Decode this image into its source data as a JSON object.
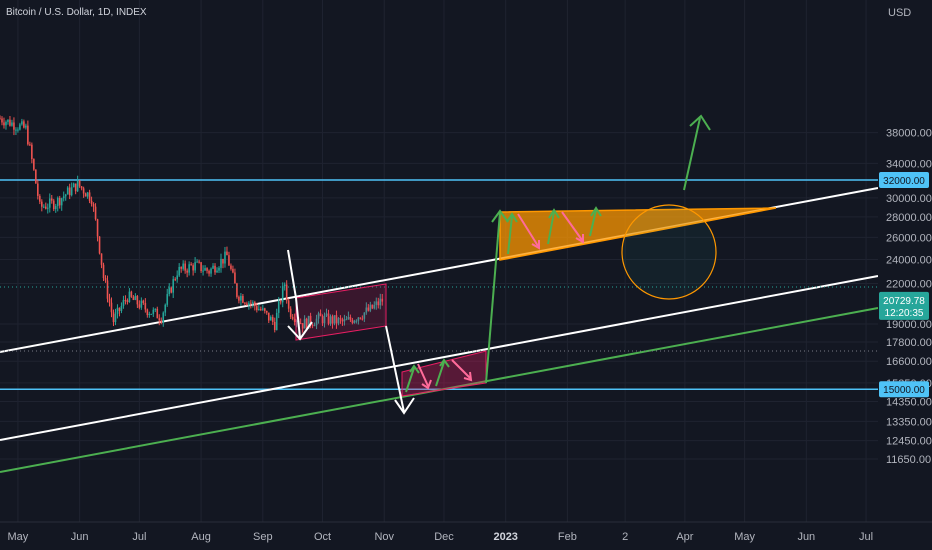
{
  "header": {
    "title": "Bitcoin / U.S. Dollar, 1D, INDEX"
  },
  "chart_data": {
    "type": "candlestick",
    "currency_label": "USD",
    "y_ticks": [
      11650,
      12450,
      13350,
      14350,
      15350,
      16600,
      17800,
      19000,
      22000,
      24000,
      26000,
      28000,
      30000,
      34000,
      38000
    ],
    "y_tick_labels": [
      "11650.00",
      "12450.00",
      "13350.00",
      "14350.00",
      "15350.00",
      "16600.00",
      "17800.00",
      "19000.00",
      "22000.00",
      "24000.00",
      "26000.00",
      "28000.00",
      "30000.00",
      "34000.00",
      "38000.00"
    ],
    "x_ticks": [
      {
        "label": "May",
        "date": "2022-05-01",
        "bold": false
      },
      {
        "label": "Jun",
        "date": "2022-06-01",
        "bold": false
      },
      {
        "label": "Jul",
        "date": "2022-07-01",
        "bold": false
      },
      {
        "label": "Aug",
        "date": "2022-08-01",
        "bold": false
      },
      {
        "label": "Sep",
        "date": "2022-09-01",
        "bold": false
      },
      {
        "label": "Oct",
        "date": "2022-10-01",
        "bold": false
      },
      {
        "label": "Nov",
        "date": "2022-11-01",
        "bold": false
      },
      {
        "label": "Dec",
        "date": "2022-12-01",
        "bold": false
      },
      {
        "label": "2023",
        "date": "2023-01-01",
        "bold": true
      },
      {
        "label": "Feb",
        "date": "2023-02-01",
        "bold": false
      },
      {
        "label": "2",
        "date": "2023-03-02",
        "bold": false
      },
      {
        "label": "Apr",
        "date": "2023-04-01",
        "bold": false
      },
      {
        "label": "May",
        "date": "2023-05-01",
        "bold": false
      },
      {
        "label": "Jun",
        "date": "2023-06-01",
        "bold": false
      },
      {
        "label": "Jul",
        "date": "2023-07-01",
        "bold": false
      }
    ],
    "x_range": [
      "2022-04-22",
      "2023-07-07"
    ],
    "price_keyframes": [
      [
        "2022-04-22",
        40000
      ],
      [
        "2022-04-29",
        39200
      ],
      [
        "2022-05-05",
        38500
      ],
      [
        "2022-05-09",
        33000
      ],
      [
        "2022-05-12",
        29000
      ],
      [
        "2022-05-20",
        29500
      ],
      [
        "2022-05-31",
        31500
      ],
      [
        "2022-06-07",
        30000
      ],
      [
        "2022-06-13",
        22500
      ],
      [
        "2022-06-18",
        19200
      ],
      [
        "2022-06-25",
        21000
      ],
      [
        "2022-07-05",
        20000
      ],
      [
        "2022-07-12",
        19500
      ],
      [
        "2022-07-20",
        23000
      ],
      [
        "2022-07-29",
        23500
      ],
      [
        "2022-08-05",
        23000
      ],
      [
        "2022-08-14",
        24300
      ],
      [
        "2022-08-19",
        21200
      ],
      [
        "2022-08-31",
        20000
      ],
      [
        "2022-09-07",
        19000
      ],
      [
        "2022-09-12",
        22000
      ],
      [
        "2022-09-14",
        20000
      ],
      [
        "2022-09-21",
        19000
      ],
      [
        "2022-09-30",
        19400
      ],
      [
        "2022-10-12",
        19100
      ],
      [
        "2022-10-25",
        20000
      ],
      [
        "2022-10-31",
        20700
      ]
    ],
    "horizontal_levels": [
      {
        "price": 32000,
        "label": "32000.00",
        "color": "#4fc3f7"
      },
      {
        "price": 15000,
        "label": "15000.00",
        "color": "#4fc3f7"
      }
    ],
    "last_price": {
      "value": "20729.78",
      "countdown": "12:20:35",
      "color": "#26a69a"
    },
    "colors": {
      "up": "#26a69a",
      "down": "#ef5350",
      "trendline_white": "#ffffff",
      "trendline_green": "#4caf50",
      "orange": "#ff9800",
      "pink": "#ff6b9a",
      "green_arrow": "#4caf50"
    }
  }
}
